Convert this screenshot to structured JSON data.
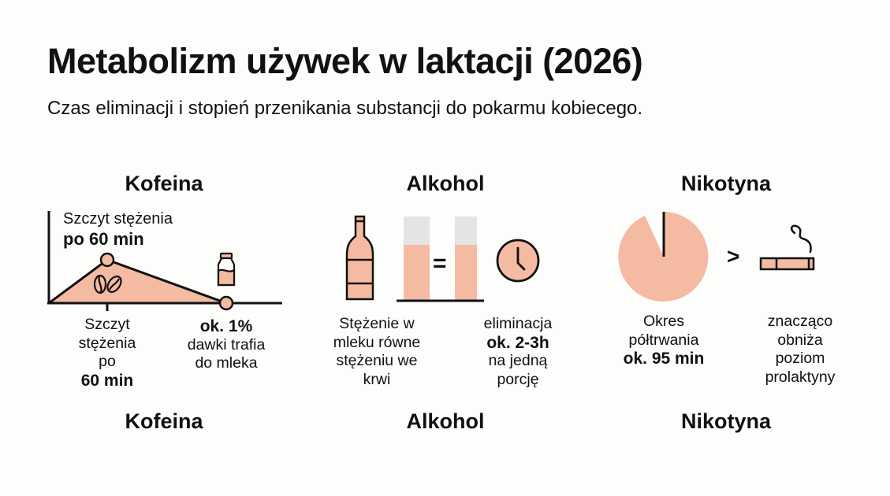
{
  "title": "Metabolizm używek w laktacji (2026)",
  "subtitle": "Czas eliminacji i stopień przenikania substancji do pokarmu kobiecego.",
  "colors": {
    "accent": "#f4bba2",
    "stroke": "#111111",
    "empty": "#e4e4e4"
  },
  "sections": [
    {
      "heading": "Kofeina",
      "footer": "Kofeina",
      "chart_label": {
        "line1": "Szczyt stężenia",
        "line2": "po 60 min"
      },
      "left": {
        "line1": "Szczyt",
        "line2": "stężenia",
        "line3a": "po ",
        "line3b": "60 min"
      },
      "right": {
        "bold": "ok. 1%",
        "line2": "dawki trafia",
        "line3": "do mleka"
      },
      "icons": [
        "coffee-beans-icon",
        "milk-bottle-icon"
      ]
    },
    {
      "heading": "Alkohol",
      "footer": "Alkohol",
      "equals": "=",
      "left": {
        "line1": "Stężenie w",
        "line2": "mleku równe",
        "line3": "stężeniu we",
        "line4": "krwi"
      },
      "right": {
        "line1": "eliminacja",
        "bold": "ok. 2-3h",
        "line3": "na jedną",
        "line4": "porcję"
      },
      "icons": [
        "bottle-icon",
        "clock-icon"
      ]
    },
    {
      "heading": "Nikotyna",
      "footer": "Nikotyna",
      "greater": ">",
      "left": {
        "line1": "Okres",
        "line2": "półtrwania",
        "bold": "ok. 95 min"
      },
      "right": {
        "line1": "znacząco",
        "line2": "obniża",
        "line3": "poziom",
        "line4": "prolaktyny"
      },
      "icons": [
        "pie-timer-icon",
        "cigarette-icon"
      ]
    }
  ]
}
